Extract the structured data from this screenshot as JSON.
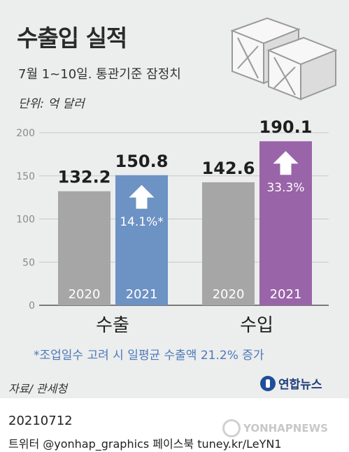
{
  "header": {
    "title": "수출입 실적",
    "subtitle": "7월 1~10일. 통관기준 잠정치",
    "unit": "단위: 억 달러"
  },
  "chart_data": {
    "type": "bar",
    "groups": [
      "수출",
      "수입"
    ],
    "bars": [
      {
        "group": "수출",
        "year": "2020",
        "value": 132.2,
        "value_label": "132.2",
        "color": "#a7a6a6"
      },
      {
        "group": "수출",
        "year": "2021",
        "value": 150.8,
        "value_label": "150.8",
        "color": "#6d92c4",
        "change": "14.1%*"
      },
      {
        "group": "수입",
        "year": "2020",
        "value": 142.6,
        "value_label": "142.6",
        "color": "#a7a6a6"
      },
      {
        "group": "수입",
        "year": "2021",
        "value": 190.1,
        "value_label": "190.1",
        "color": "#9a64a8",
        "change": "33.3%"
      }
    ],
    "yticks": [
      "0",
      "50",
      "100",
      "150",
      "200"
    ],
    "ylim": [
      0,
      200
    ],
    "grid": true
  },
  "footnote": "*조업일수 고려 시 일평균 수출액 21.2% 증가",
  "source": "자료/ 관세청",
  "logo": {
    "text": "연합뉴스",
    "icon": "yonhap-logo-icon"
  },
  "date": "20210712",
  "social": "트위터 @yonhap_graphics  페이스북 tuney.kr/LeYN1",
  "watermark": "YONHAPNEWS",
  "decor": {
    "icon": "wooden-crates-icon"
  }
}
